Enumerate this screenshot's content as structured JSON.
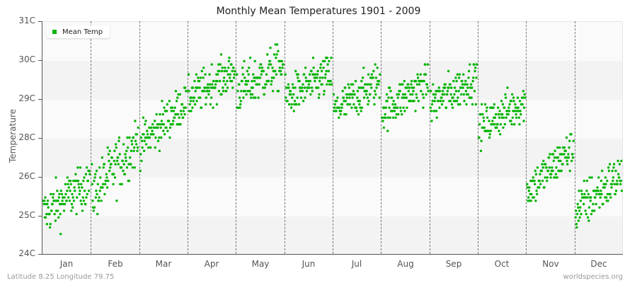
{
  "title": "Monthly Mean Temperatures 1901 - 2009",
  "footer": {
    "left": "Latitude 8.25 Longitude 79.75",
    "right": "worldspecies.org"
  },
  "colors": {
    "series": "#00b400",
    "band_light": "#fafafa",
    "band_dark": "#f3f3f3",
    "axis": "#555555",
    "divider": "#777777"
  },
  "chart_data": {
    "type": "scatter",
    "title": "Monthly Mean Temperatures 1901 - 2009",
    "xlabel": "",
    "ylabel": "Temperature",
    "y_ticks": [
      "24C",
      "25C",
      "26C",
      "28C",
      "29C",
      "30C",
      "31C"
    ],
    "y_tick_positions": [
      359,
      305,
      250,
      195,
      140,
      85,
      30
    ],
    "ylim_label_space": [
      24,
      31
    ],
    "categories": [
      "Jan",
      "Feb",
      "Mar",
      "Apr",
      "May",
      "Jun",
      "Jul",
      "Aug",
      "Sep",
      "Oct",
      "Nov",
      "Dec"
    ],
    "legend": [
      {
        "name": "Mean Temp",
        "color": "#00b400"
      }
    ],
    "legend_position": "top-left",
    "grid": "horizontal alternating bands, dashed vertical month dividers",
    "years": [
      1901,
      2009
    ],
    "points_per_month": 109,
    "series": [
      {
        "name": "Mean Temp",
        "monthly_summary": [
          {
            "month": "Jan",
            "start_mean": 25.2,
            "end_mean": 26.2,
            "spread": 0.35,
            "min": 24.4,
            "max": 26.6
          },
          {
            "month": "Feb",
            "start_mean": 25.8,
            "end_mean": 27.4,
            "spread": 0.4,
            "min": 24.9,
            "max": 28.0
          },
          {
            "month": "Mar",
            "start_mean": 27.3,
            "end_mean": 28.6,
            "spread": 0.3,
            "min": 26.4,
            "max": 29.0
          },
          {
            "month": "Apr",
            "start_mean": 28.7,
            "end_mean": 29.5,
            "spread": 0.3,
            "min": 28.2,
            "max": 30.6
          },
          {
            "month": "May",
            "start_mean": 28.9,
            "end_mean": 29.7,
            "spread": 0.35,
            "min": 28.3,
            "max": 30.4
          },
          {
            "month": "Jun",
            "start_mean": 28.7,
            "end_mean": 29.4,
            "spread": 0.3,
            "min": 28.3,
            "max": 30.2
          },
          {
            "month": "Jul",
            "start_mean": 28.3,
            "end_mean": 29.2,
            "spread": 0.3,
            "min": 27.8,
            "max": 29.7
          },
          {
            "month": "Aug",
            "start_mean": 28.3,
            "end_mean": 29.2,
            "spread": 0.3,
            "min": 27.6,
            "max": 29.7
          },
          {
            "month": "Sep",
            "start_mean": 28.5,
            "end_mean": 29.3,
            "spread": 0.3,
            "min": 28.0,
            "max": 29.7
          },
          {
            "month": "Oct",
            "start_mean": 27.8,
            "end_mean": 28.6,
            "spread": 0.3,
            "min": 26.7,
            "max": 29.1
          },
          {
            "month": "Nov",
            "start_mean": 25.9,
            "end_mean": 27.2,
            "spread": 0.3,
            "min": 25.6,
            "max": 28.3
          },
          {
            "month": "Dec",
            "start_mean": 25.3,
            "end_mean": 26.4,
            "spread": 0.35,
            "min": 24.8,
            "max": 26.8
          }
        ]
      }
    ]
  }
}
